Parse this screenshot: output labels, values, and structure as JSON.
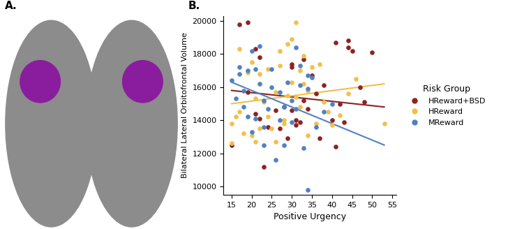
{
  "panel_labels": [
    "A.",
    "B."
  ],
  "chart_data": {
    "type": "scatter",
    "x_label": "Positive Urgency",
    "y_label": "Bilateral Lateral Orbitofrontal Volume",
    "xlim": [
      13,
      56
    ],
    "xticks": [
      15,
      20,
      25,
      30,
      35,
      40,
      45,
      50,
      55
    ],
    "ylim": [
      9500,
      20300
    ],
    "yticks": [
      10000,
      12000,
      14000,
      16000,
      18000,
      20000
    ],
    "grid": false,
    "legend": "center left",
    "legend_title": "Risk Group",
    "marker": "o",
    "series": [
      {
        "name": "HReward+BSD",
        "color": "#8b2323",
        "x": [
          17,
          19,
          15,
          21,
          22,
          23,
          24,
          26,
          27,
          28,
          29,
          30,
          30,
          31,
          31,
          32,
          33,
          33,
          34,
          35,
          36,
          37,
          38,
          40,
          41,
          41,
          42,
          43,
          44,
          44,
          45,
          47,
          48,
          50,
          30,
          21,
          22,
          19
        ],
        "y": [
          19800,
          19900,
          12500,
          18300,
          17800,
          11200,
          13600,
          14600,
          13500,
          14800,
          12900,
          14600,
          17400,
          13700,
          14000,
          13900,
          15200,
          17700,
          14700,
          16700,
          15600,
          12900,
          16100,
          14000,
          18700,
          12400,
          15000,
          13900,
          18800,
          18400,
          18200,
          16000,
          15100,
          18100,
          17200,
          14400,
          14100,
          15700
        ],
        "trend": {
          "x": [
            15,
            53
          ],
          "y": [
            15800,
            14800
          ]
        }
      },
      {
        "name": "HReward",
        "color": "#f2bf4a",
        "x": [
          15,
          15,
          16,
          17,
          17,
          18,
          19,
          20,
          20,
          21,
          21,
          22,
          22,
          23,
          24,
          24,
          25,
          26,
          26,
          27,
          27,
          28,
          28,
          29,
          29,
          30,
          30,
          31,
          31,
          32,
          32,
          33,
          33,
          34,
          34,
          35,
          36,
          37,
          38,
          40,
          42,
          44,
          46,
          53,
          39
        ],
        "y": [
          13800,
          12600,
          14200,
          18300,
          14500,
          13200,
          16900,
          13100,
          17500,
          15300,
          12700,
          16800,
          13500,
          15100,
          17100,
          14200,
          13500,
          12700,
          15700,
          17300,
          18200,
          14000,
          13800,
          15500,
          18600,
          18900,
          16300,
          15400,
          19900,
          17000,
          14800,
          16200,
          17900,
          13100,
          15800,
          17200,
          13800,
          17400,
          15100,
          13700,
          14300,
          15600,
          16500,
          13800,
          14500
        ],
        "trend": {
          "x": [
            15,
            53
          ],
          "y": [
            15000,
            16200
          ]
        }
      },
      {
        "name": "MReward",
        "color": "#4f81c4",
        "x": [
          15,
          16,
          17,
          17,
          18,
          18,
          19,
          19,
          20,
          20,
          21,
          21,
          22,
          22,
          23,
          23,
          24,
          25,
          25,
          26,
          27,
          27,
          28,
          28,
          29,
          30,
          30,
          31,
          31,
          32,
          32,
          33,
          34,
          34,
          34,
          35,
          36,
          38,
          40,
          23
        ],
        "y": [
          16400,
          15300,
          16800,
          17200,
          14800,
          15800,
          17000,
          14200,
          18200,
          13300,
          14100,
          17100,
          16200,
          18500,
          15200,
          13600,
          14700,
          17100,
          16000,
          11600,
          14000,
          15700,
          12500,
          14800,
          16300,
          13900,
          15200,
          18400,
          14700,
          16100,
          17300,
          12300,
          16700,
          9800,
          15900,
          16600,
          13600,
          14500,
          15000,
          12500
        ],
        "trend": {
          "x": [
            15,
            53
          ],
          "y": [
            16300,
            12500
          ]
        }
      }
    ]
  }
}
